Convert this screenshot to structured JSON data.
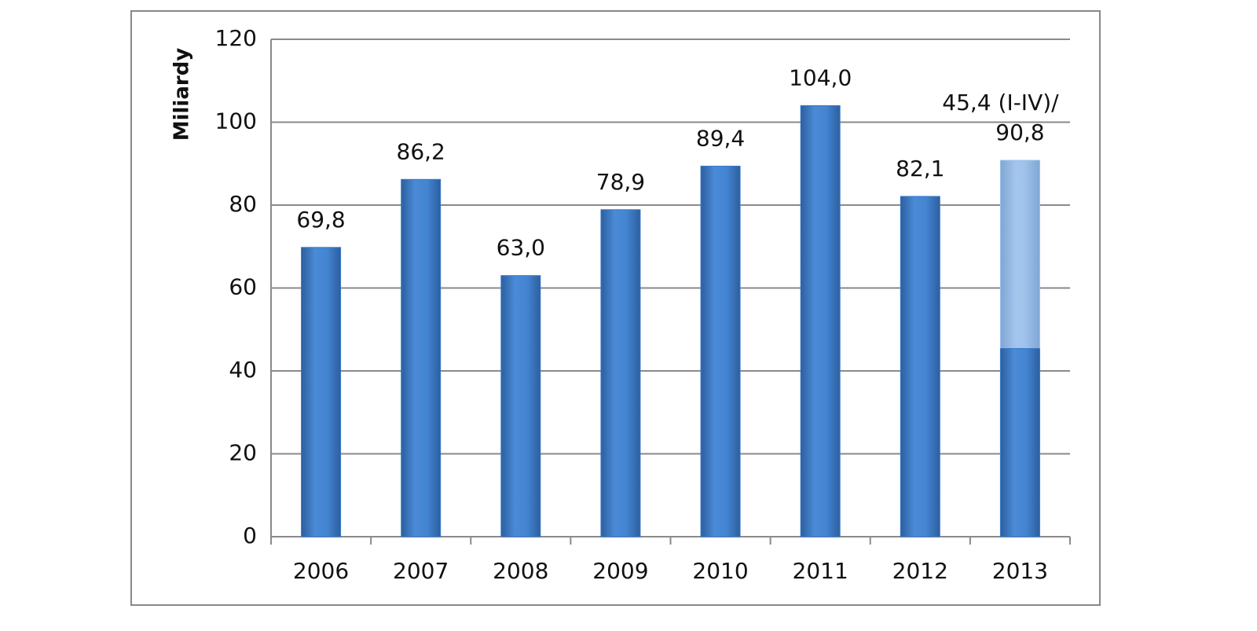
{
  "chart_data": {
    "type": "bar",
    "overlap": true,
    "y_label": "Miliardy",
    "categories": [
      "2006",
      "2007",
      "2008",
      "2009",
      "2010",
      "2011",
      "2012",
      "2013"
    ],
    "series": [
      {
        "color": "#3a78c9",
        "values": [
          69.8,
          86.2,
          63.0,
          78.9,
          89.4,
          104.0,
          82.1,
          45.4
        ],
        "value_labels": [
          "69,8",
          "86,2",
          "63,0",
          "78,9",
          "89,4",
          "104,0",
          "82,1",
          "45,4 (I-IV)/"
        ]
      },
      {
        "color": "#9dc0ea",
        "values": [
          null,
          null,
          null,
          null,
          null,
          null,
          null,
          90.8
        ],
        "value_labels": [
          null,
          null,
          null,
          null,
          null,
          null,
          null,
          "90,8"
        ]
      }
    ],
    "ylim": [
      0,
      120
    ],
    "yticks": [
      0,
      20,
      40,
      60,
      80,
      100,
      120
    ],
    "grid": true
  }
}
